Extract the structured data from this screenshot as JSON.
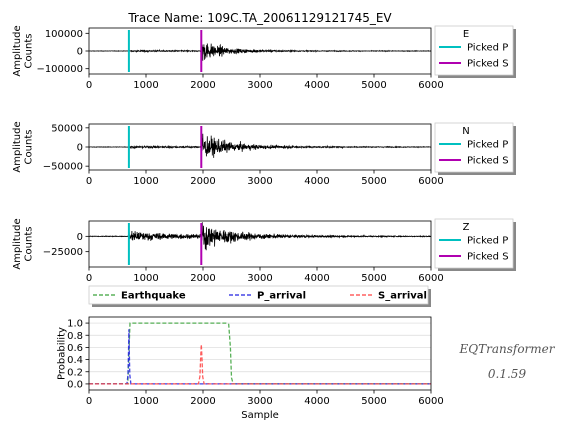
{
  "figure": {
    "title": "Trace Name: 109C.TA_20061129121745_EV",
    "model_name": "EQTransformer",
    "model_version": "0.1.59"
  },
  "colors": {
    "trace": "#000000",
    "picked_p": "#00c0c0",
    "picked_s": "#b000b0",
    "earthquake": "#3aa23a",
    "p_arrival": "#2020e0",
    "s_arrival": "#ff4040"
  },
  "chart_data": [
    {
      "type": "line",
      "channel": "E",
      "ylabel": "Amplitude\nCounts",
      "xlim": [
        0,
        6000
      ],
      "ylim": [
        -130000,
        130000
      ],
      "xticks": [
        0,
        1000,
        2000,
        3000,
        4000,
        5000,
        6000
      ],
      "yticks": [
        -100000,
        0,
        100000
      ],
      "ytick_labels": [
        "−100000",
        "0",
        "100000"
      ],
      "picked_p": 700,
      "picked_s": 1970,
      "legend": {
        "title": "E",
        "entries": [
          "Picked P",
          "Picked S"
        ],
        "placement": "outside-right"
      },
      "envelope": {
        "pre": 1500,
        "p_amp": 6000,
        "s_amp": 90000,
        "p_decay": 1500,
        "s_decay": 350,
        "tail": 3000
      }
    },
    {
      "type": "line",
      "channel": "N",
      "ylabel": "Amplitude\nCounts",
      "xlim": [
        0,
        6000
      ],
      "ylim": [
        -60000,
        60000
      ],
      "xticks": [
        0,
        1000,
        2000,
        3000,
        4000,
        5000,
        6000
      ],
      "yticks": [
        -50000,
        0,
        50000
      ],
      "ytick_labels": [
        "−50000",
        "0",
        "50000"
      ],
      "picked_p": 700,
      "picked_s": 1970,
      "legend": {
        "title": "N",
        "entries": [
          "Picked P",
          "Picked S"
        ],
        "placement": "outside-right"
      },
      "envelope": {
        "pre": 800,
        "p_amp": 4000,
        "s_amp": 45000,
        "p_decay": 1500,
        "s_decay": 500,
        "tail": 2000
      }
    },
    {
      "type": "line",
      "channel": "Z",
      "ylabel": "Amplitude\nCounts",
      "xlim": [
        0,
        6000
      ],
      "ylim": [
        -50000,
        25000
      ],
      "xticks": [
        0,
        1000,
        2000,
        3000,
        4000,
        5000,
        6000
      ],
      "yticks": [
        -25000,
        0
      ],
      "ytick_labels": [
        "−25000",
        "0"
      ],
      "picked_p": 700,
      "picked_s": 1970,
      "legend": {
        "title": "Z",
        "entries": [
          "Picked P",
          "Picked S"
        ],
        "placement": "outside-right"
      },
      "envelope": {
        "pre": 600,
        "p_amp": 12000,
        "s_amp": 28000,
        "p_decay": 1200,
        "s_decay": 450,
        "tail": 2500
      }
    },
    {
      "type": "line",
      "xlabel": "Sample",
      "ylabel": "Probability",
      "xlim": [
        0,
        6000
      ],
      "ylim": [
        -0.1,
        1.1
      ],
      "xticks": [
        0,
        1000,
        2000,
        3000,
        4000,
        5000,
        6000
      ],
      "yticks": [
        0.0,
        0.2,
        0.4,
        0.6,
        0.8,
        1.0
      ],
      "ytick_labels": [
        "0.0",
        "0.2",
        "0.4",
        "0.6",
        "0.8",
        "1.0"
      ],
      "grid": true,
      "legend": {
        "entries": [
          "Earthquake",
          "P_arrival",
          "S_arrival"
        ],
        "placement": "top-outside"
      },
      "series": [
        {
          "name": "Earthquake",
          "style": "dashed",
          "x": [
            0,
            680,
            700,
            720,
            2400,
            2450,
            2480,
            2500,
            2530,
            6000
          ],
          "y": [
            0,
            0,
            0.5,
            1.0,
            1.0,
            0.98,
            0.6,
            0.1,
            0,
            0
          ]
        },
        {
          "name": "P_arrival",
          "style": "dashed",
          "x": [
            0,
            665,
            685,
            695,
            700,
            705,
            715,
            735,
            6000
          ],
          "y": [
            0,
            0,
            0.15,
            0.6,
            0.9,
            0.6,
            0.15,
            0,
            0
          ]
        },
        {
          "name": "S_arrival",
          "style": "dashed",
          "x": [
            0,
            1920,
            1945,
            1960,
            1970,
            1980,
            1995,
            2020,
            6000
          ],
          "y": [
            0,
            0,
            0.12,
            0.45,
            0.65,
            0.45,
            0.12,
            0,
            0
          ]
        }
      ]
    }
  ]
}
